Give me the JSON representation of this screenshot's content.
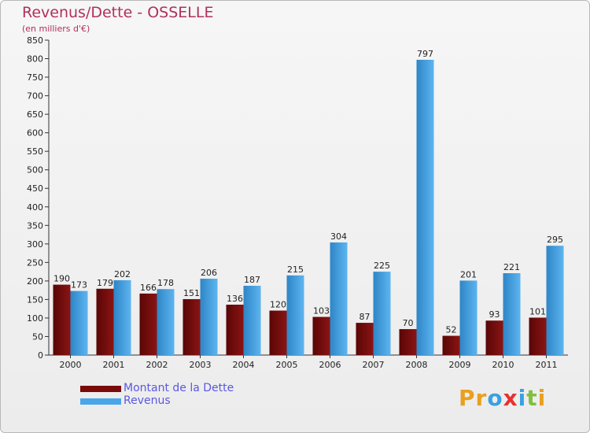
{
  "chart_data": {
    "type": "bar",
    "title": "Revenus/Dette - OSSELLE",
    "subtitle": "(en milliers d'€)",
    "categories": [
      "2000",
      "2001",
      "2002",
      "2003",
      "2004",
      "2005",
      "2006",
      "2007",
      "2008",
      "2009",
      "2010",
      "2011"
    ],
    "series": [
      {
        "name": "Montant de la Dette",
        "color": "#7a0a0a",
        "values": [
          190,
          179,
          166,
          151,
          136,
          120,
          103,
          87,
          70,
          52,
          93,
          101
        ]
      },
      {
        "name": "Revenus",
        "color": "#4aa6e8",
        "values": [
          173,
          202,
          178,
          206,
          187,
          215,
          304,
          225,
          797,
          201,
          221,
          295
        ]
      }
    ],
    "ylim": [
      0,
      850
    ],
    "yticks": [
      0,
      50,
      100,
      150,
      200,
      250,
      300,
      350,
      400,
      450,
      500,
      550,
      600,
      650,
      700,
      750,
      800,
      850
    ],
    "grid": false,
    "legend": "bottom-left"
  },
  "logo": {
    "text": "Proxiti",
    "colors": [
      "#e8a020",
      "#e8a020",
      "#3aa0e0",
      "#e83030",
      "#3aa0e0",
      "#80c040",
      "#e8a020"
    ]
  }
}
